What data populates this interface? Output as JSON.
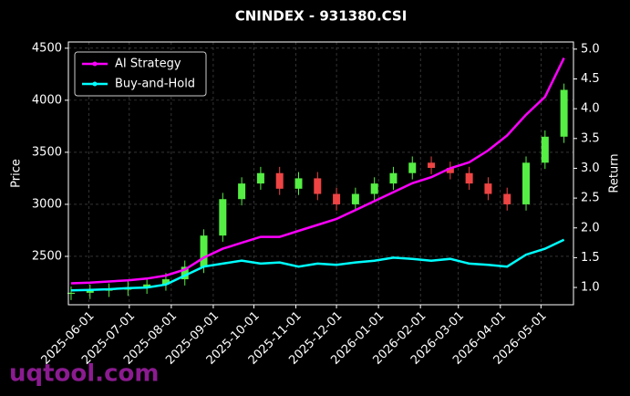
{
  "chart_data": {
    "type": "candlestick",
    "title": "CNINDEX - 931380.CSI",
    "ylabel": "Price",
    "y2label": "Return",
    "watermark": "uqtool.com",
    "x": [
      "2025-05-19",
      "2025-06-02",
      "2025-06-16",
      "2025-06-30",
      "2025-07-14",
      "2025-07-28",
      "2025-08-11",
      "2025-08-25",
      "2025-09-08",
      "2025-09-22",
      "2025-10-06",
      "2025-10-20",
      "2025-11-03",
      "2025-11-17",
      "2025-12-01",
      "2025-12-15",
      "2025-12-29",
      "2026-01-12",
      "2026-01-26",
      "2026-02-09",
      "2026-02-23",
      "2026-03-09",
      "2026-03-23",
      "2026-04-06",
      "2026-04-20",
      "2026-05-04",
      "2026-05-18"
    ],
    "open": [
      2140,
      2150,
      2170,
      2180,
      2200,
      2230,
      2280,
      2400,
      2700,
      3050,
      3200,
      3300,
      3150,
      3250,
      3100,
      3000,
      3100,
      3200,
      3300,
      3400,
      3350,
      3300,
      3200,
      3100,
      3000,
      3400,
      3650
    ],
    "high": [
      2210,
      2230,
      2240,
      2260,
      2290,
      2340,
      2460,
      2760,
      3110,
      3260,
      3360,
      3360,
      3310,
      3310,
      3160,
      3160,
      3260,
      3360,
      3460,
      3460,
      3410,
      3360,
      3260,
      3160,
      3460,
      3710,
      4160
    ],
    "low": [
      2080,
      2090,
      2110,
      2120,
      2140,
      2170,
      2220,
      2340,
      2640,
      2990,
      3140,
      3090,
      3090,
      3040,
      2940,
      2940,
      3040,
      3140,
      3240,
      3290,
      3240,
      3140,
      3040,
      2940,
      2940,
      3340,
      3590
    ],
    "close": [
      2150,
      2170,
      2180,
      2200,
      2230,
      2280,
      2400,
      2700,
      3050,
      3200,
      3300,
      3150,
      3250,
      3100,
      3000,
      3100,
      3200,
      3300,
      3400,
      3350,
      3300,
      3200,
      3100,
      3000,
      3400,
      3650,
      4100
    ],
    "up_color": "#55ee44",
    "down_color": "#ee4444",
    "series": [
      {
        "name": "AI Strategy",
        "color": "#ff00ff",
        "axis": "y2",
        "values": [
          1.07,
          1.08,
          1.1,
          1.12,
          1.15,
          1.2,
          1.3,
          1.5,
          1.65,
          1.75,
          1.85,
          1.85,
          1.95,
          2.05,
          2.15,
          2.3,
          2.45,
          2.6,
          2.75,
          2.85,
          3.0,
          3.1,
          3.3,
          3.55,
          3.9,
          4.2,
          4.85
        ]
      },
      {
        "name": "Buy-and-Hold",
        "color": "#00ffff",
        "axis": "y2",
        "values": [
          0.95,
          0.96,
          0.97,
          0.99,
          1.0,
          1.05,
          1.2,
          1.35,
          1.4,
          1.45,
          1.4,
          1.42,
          1.35,
          1.4,
          1.38,
          1.42,
          1.45,
          1.5,
          1.48,
          1.45,
          1.48,
          1.4,
          1.38,
          1.35,
          1.55,
          1.65,
          1.8
        ]
      }
    ],
    "xlim": [
      "2025-05-17",
      "2026-05-25"
    ],
    "xticks": [
      "2025-06-01",
      "2025-07-01",
      "2025-08-01",
      "2025-09-01",
      "2025-10-01",
      "2025-11-01",
      "2025-12-01",
      "2026-01-01",
      "2026-02-01",
      "2026-03-01",
      "2026-04-01",
      "2026-05-01"
    ],
    "ylim": [
      2035,
      4560
    ],
    "yticks": [
      2500,
      3000,
      3500,
      4000,
      4500
    ],
    "y2lim": [
      0.71,
      5.12
    ],
    "y2ticks": [
      {
        "value": 1,
        "label": "1.0"
      },
      {
        "value": 1.5,
        "label": "1.5"
      },
      {
        "value": 2,
        "label": "2.0"
      },
      {
        "value": 2.5,
        "label": "2.5"
      },
      {
        "value": 3,
        "label": "3.0"
      },
      {
        "value": 3.5,
        "label": "3.5"
      },
      {
        "value": 4,
        "label": "4.0"
      },
      {
        "value": 4.5,
        "label": "4.5"
      },
      {
        "value": 5,
        "label": "5.0"
      }
    ],
    "grid": true,
    "legend": "upper left"
  }
}
